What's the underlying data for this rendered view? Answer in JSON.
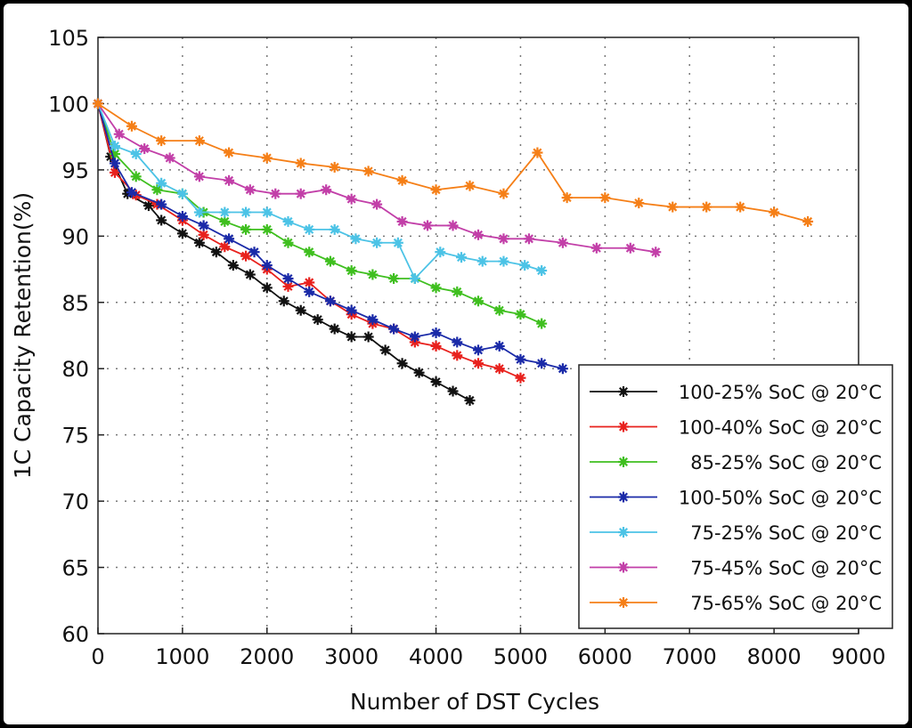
{
  "chart_data": {
    "type": "line",
    "title": "",
    "xlabel": "Number of DST Cycles",
    "ylabel": "1C Capacity Retention(%)",
    "xlim": [
      0,
      9000
    ],
    "ylim": [
      60,
      105
    ],
    "xticks": [
      "0",
      "1000",
      "2000",
      "3000",
      "4000",
      "5000",
      "6000",
      "7000",
      "8000",
      "9000"
    ],
    "yticks": [
      "60",
      "65",
      "70",
      "75",
      "80",
      "85",
      "90",
      "95",
      "100",
      "105"
    ],
    "grid": true,
    "legend_placement": "bottom-right",
    "series": [
      {
        "name": "100-25% SoC @ 20°C",
        "color": "#111111",
        "x": [
          0,
          150,
          350,
          600,
          750,
          1000,
          1200,
          1400,
          1600,
          1800,
          2000,
          2200,
          2400,
          2600,
          2800,
          3000,
          3200,
          3400,
          3600,
          3800,
          4000,
          4200,
          4400
        ],
        "y": [
          100,
          96.0,
          93.2,
          92.3,
          91.2,
          90.2,
          89.5,
          88.8,
          87.8,
          87.1,
          86.1,
          85.1,
          84.4,
          83.7,
          83.0,
          82.4,
          82.4,
          81.4,
          80.4,
          79.7,
          79.0,
          78.3,
          77.6
        ]
      },
      {
        "name": "100-40% SoC @ 20°C",
        "color": "#e8211d",
        "x": [
          0,
          200,
          450,
          700,
          1000,
          1250,
          1500,
          1750,
          2000,
          2250,
          2500,
          2750,
          3000,
          3250,
          3500,
          3750,
          4000,
          4250,
          4500,
          4750,
          5000
        ],
        "y": [
          100,
          94.8,
          93.1,
          92.4,
          91.2,
          90.1,
          89.2,
          88.5,
          87.5,
          86.2,
          86.5,
          85.1,
          84.1,
          83.4,
          83.0,
          82.0,
          81.7,
          81.0,
          80.4,
          80.0,
          79.3
        ]
      },
      {
        "name": "85-25% SoC @ 20°C",
        "color": "#3fbf1f",
        "x": [
          0,
          200,
          450,
          700,
          1000,
          1250,
          1500,
          1750,
          2000,
          2250,
          2500,
          2750,
          3000,
          3250,
          3500,
          3750,
          4000,
          4250,
          4500,
          4750,
          5000,
          5250
        ],
        "y": [
          100,
          96.2,
          94.5,
          93.5,
          93.2,
          91.8,
          91.1,
          90.5,
          90.5,
          89.5,
          88.8,
          88.1,
          87.4,
          87.1,
          86.8,
          86.8,
          86.1,
          85.8,
          85.1,
          84.4,
          84.1,
          83.4
        ]
      },
      {
        "name": "100-50% SoC @ 20°C",
        "color": "#1a2aa8",
        "x": [
          0,
          200,
          400,
          750,
          1000,
          1250,
          1550,
          1850,
          2000,
          2250,
          2500,
          2750,
          3000,
          3250,
          3500,
          3750,
          4000,
          4250,
          4500,
          4750,
          5000,
          5250,
          5500
        ],
        "y": [
          100,
          95.5,
          93.3,
          92.4,
          91.5,
          90.8,
          89.8,
          88.8,
          87.8,
          86.8,
          85.8,
          85.1,
          84.4,
          83.7,
          83.0,
          82.4,
          82.7,
          82.0,
          81.4,
          81.7,
          80.7,
          80.4,
          80.0
        ]
      },
      {
        "name": "75-25% SoC @ 20°C",
        "color": "#4cc3e6",
        "x": [
          0,
          200,
          450,
          750,
          1000,
          1200,
          1500,
          1750,
          2000,
          2250,
          2500,
          2800,
          3050,
          3300,
          3550,
          3750,
          4050,
          4300,
          4550,
          4800,
          5050,
          5250
        ],
        "y": [
          100,
          96.8,
          96.2,
          94.0,
          93.2,
          91.8,
          91.8,
          91.8,
          91.8,
          91.1,
          90.5,
          90.5,
          89.8,
          89.5,
          89.5,
          86.8,
          88.8,
          88.4,
          88.1,
          88.1,
          87.8,
          87.4
        ]
      },
      {
        "name": "75-45% SoC @ 20°C",
        "color": "#c23fa8",
        "x": [
          0,
          250,
          550,
          850,
          1200,
          1550,
          1800,
          2100,
          2400,
          2700,
          3000,
          3300,
          3600,
          3900,
          4200,
          4500,
          4800,
          5100,
          5500,
          5900,
          6300,
          6600
        ],
        "y": [
          100,
          97.7,
          96.6,
          95.9,
          94.5,
          94.2,
          93.5,
          93.2,
          93.2,
          93.5,
          92.8,
          92.4,
          91.1,
          90.8,
          90.8,
          90.1,
          89.8,
          89.8,
          89.5,
          89.1,
          89.1,
          88.8
        ]
      },
      {
        "name": "75-65% SoC @ 20°C",
        "color": "#f57f17",
        "x": [
          0,
          400,
          750,
          1200,
          1550,
          2000,
          2400,
          2800,
          3200,
          3600,
          4000,
          4400,
          4800,
          5200,
          5550,
          6000,
          6400,
          6800,
          7200,
          7600,
          8000,
          8400
        ],
        "y": [
          100,
          98.3,
          97.2,
          97.2,
          96.3,
          95.9,
          95.5,
          95.2,
          94.9,
          94.2,
          93.5,
          93.8,
          93.2,
          96.3,
          92.9,
          92.9,
          92.5,
          92.2,
          92.2,
          92.2,
          91.8,
          91.1
        ]
      }
    ]
  }
}
